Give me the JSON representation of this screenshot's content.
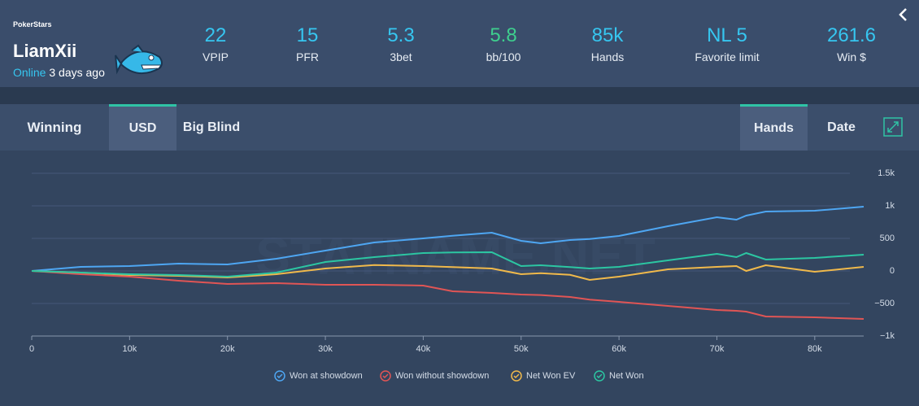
{
  "header": {
    "site": "PokerStars",
    "username": "LiamXii",
    "status": "Online",
    "last_seen": "3 days ago",
    "stats": [
      {
        "value": 22,
        "label": "VPIP"
      },
      {
        "value": 15,
        "label": "PFR"
      },
      {
        "value": 5.3,
        "label": "3bet"
      },
      {
        "value": 5.8,
        "label": "bb/100"
      },
      {
        "value": "85k",
        "label": "Hands"
      },
      {
        "value": "NL 5",
        "label": "Favorite limit"
      },
      {
        "value": 261.6,
        "label": "Win $"
      }
    ]
  },
  "tabs": {
    "title": "Winning",
    "unit_tabs": [
      "USD",
      "Big Blind"
    ],
    "x_tabs": [
      "Hands",
      "Date"
    ]
  },
  "chart_data": {
    "type": "line",
    "watermark": "STATNAME.NET",
    "x": [
      0,
      5000,
      10000,
      15000,
      20000,
      25000,
      30000,
      35000,
      40000,
      43000,
      47000,
      50000,
      52000,
      55000,
      57000,
      60000,
      65000,
      70000,
      72000,
      73000,
      75000,
      80000,
      85000
    ],
    "series": [
      {
        "name": "Won at showdown",
        "color": "#4ea6f2",
        "values": [
          0,
          62,
          75,
          112,
          100,
          188,
          312,
          438,
          500,
          540,
          588,
          462,
          425,
          475,
          490,
          538,
          688,
          825,
          788,
          850,
          912,
          925,
          988
        ]
      },
      {
        "name": "Won without showdown",
        "color": "#e05555",
        "values": [
          0,
          -50,
          -88,
          -150,
          -200,
          -188,
          -212,
          -212,
          -225,
          -312,
          -338,
          -362,
          -370,
          -400,
          -440,
          -475,
          -538,
          -600,
          -612,
          -625,
          -700,
          -712,
          -738
        ]
      },
      {
        "name": "Net Won EV",
        "color": "#f0b94b",
        "values": [
          0,
          -25,
          -62,
          -75,
          -100,
          -50,
          38,
          90,
          75,
          60,
          38,
          -50,
          -35,
          -60,
          -138,
          -88,
          25,
          62,
          75,
          0,
          88,
          -12,
          62
        ]
      },
      {
        "name": "Net Won",
        "color": "#2cc6a2",
        "values": [
          0,
          -25,
          -50,
          -62,
          -88,
          -25,
          138,
          212,
          275,
          285,
          288,
          75,
          88,
          60,
          38,
          62,
          162,
          262,
          212,
          275,
          175,
          200,
          250
        ]
      }
    ],
    "xlim": [
      0,
      85000
    ],
    "xticks": [
      0,
      {
        "value": 10000,
        "label": "10k"
      },
      {
        "value": 20000,
        "label": "20k"
      },
      {
        "value": 30000,
        "label": "30k"
      },
      {
        "value": 40000,
        "label": "40k"
      },
      {
        "value": 50000,
        "label": "50k"
      },
      {
        "value": 60000,
        "label": "60k"
      },
      {
        "value": 70000,
        "label": "70k"
      },
      {
        "value": 80000,
        "label": "80k"
      }
    ],
    "ylim": [
      -1000,
      1500
    ],
    "yticks": [
      {
        "value": 1500,
        "label": "1.5k"
      },
      {
        "value": 1000,
        "label": "1k"
      },
      500,
      0,
      {
        "value": -500,
        "label": "−500"
      },
      {
        "value": -1000,
        "label": "−1k"
      }
    ],
    "grid": true
  }
}
